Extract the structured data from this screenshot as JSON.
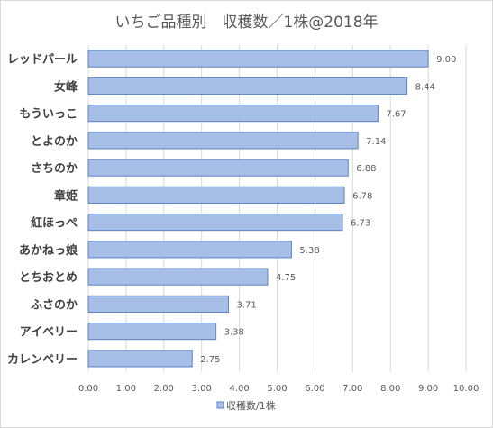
{
  "chart_data": {
    "type": "bar",
    "orientation": "horizontal",
    "title": "いちご品種別　収穫数／1株@2018年",
    "categories": [
      "レッドパール",
      "女峰",
      "もういっこ",
      "とよのか",
      "さちのか",
      "章姫",
      "紅ほっぺ",
      "あかねっ娘",
      "とちおとめ",
      "ふさのか",
      "アイベリー",
      "カレンベリー"
    ],
    "series": [
      {
        "name": "収穫数/1株",
        "values": [
          9.0,
          8.44,
          7.67,
          7.14,
          6.88,
          6.78,
          6.73,
          5.38,
          4.75,
          3.71,
          3.38,
          2.75
        ],
        "value_labels": [
          "9.00",
          "8.44",
          "7.67",
          "7.14",
          "6.88",
          "6.78",
          "6.73",
          "5.38",
          "4.75",
          "3.71",
          "3.38",
          "2.75"
        ]
      }
    ],
    "xlim": [
      0,
      10
    ],
    "x_ticks": [
      "0.00",
      "1.00",
      "2.00",
      "3.00",
      "4.00",
      "5.00",
      "6.00",
      "7.00",
      "8.00",
      "9.00",
      "10.00"
    ],
    "grid": true,
    "legend_position": "bottom",
    "colors": {
      "bar_fill": "#a7bfe6",
      "bar_stroke": "#5a83c4",
      "grid": "#d9d9d9"
    }
  }
}
